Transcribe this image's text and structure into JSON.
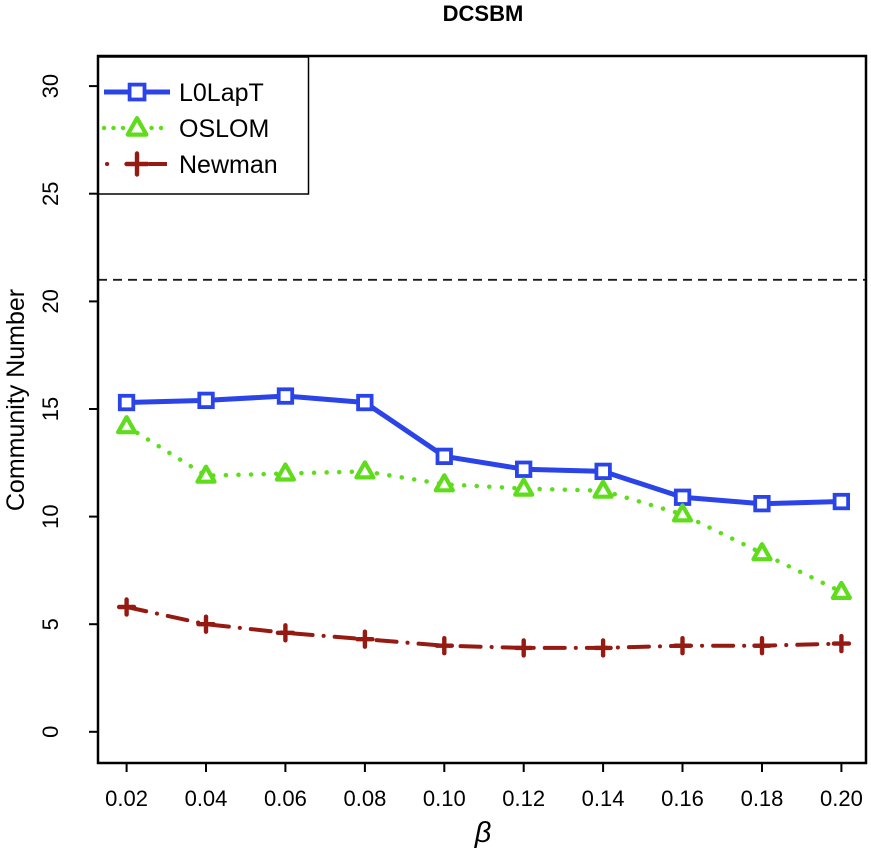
{
  "chart_data": {
    "type": "line",
    "title": "DCSBM",
    "xlabel": "β",
    "ylabel": "Community Number",
    "x": [
      0.02,
      0.04,
      0.06,
      0.08,
      0.1,
      0.12,
      0.14,
      0.16,
      0.18,
      0.2
    ],
    "x_tick_labels": [
      "0.02",
      "0.04",
      "0.06",
      "0.08",
      "0.10",
      "0.12",
      "0.14",
      "0.16",
      "0.18",
      "0.20"
    ],
    "y_ticks": [
      0,
      5,
      10,
      15,
      20,
      25,
      30
    ],
    "y_tick_labels": [
      "0",
      "5",
      "10",
      "15",
      "20",
      "25",
      "30"
    ],
    "xlim": [
      0.0128,
      0.2062
    ],
    "ylim": [
      -1.45,
      31.4
    ],
    "grid": false,
    "background": "#ffffff",
    "frame_color": "#000000",
    "reference_line": {
      "y": 21,
      "style": "dashed",
      "color": "#1c1c1c"
    },
    "legend": {
      "position": "top-left",
      "border": true
    },
    "series": [
      {
        "name": "L0LapT",
        "color": "#2b44e8",
        "line_style": "solid",
        "marker": "open-square",
        "values": [
          15.3,
          15.4,
          15.6,
          15.3,
          12.8,
          12.2,
          12.1,
          10.9,
          10.6,
          10.7
        ]
      },
      {
        "name": "OSLOM",
        "color": "#5fdd1c",
        "line_style": "dotted",
        "marker": "open-triangle",
        "values": [
          14.2,
          11.9,
          12.0,
          12.1,
          11.5,
          11.3,
          11.2,
          10.1,
          8.3,
          6.5
        ]
      },
      {
        "name": "Newman",
        "color": "#941a12",
        "line_style": "dashdot",
        "marker": "plus",
        "values": [
          5.8,
          5.0,
          4.6,
          4.3,
          4.0,
          3.9,
          3.9,
          4.0,
          4.0,
          4.1
        ]
      }
    ]
  }
}
